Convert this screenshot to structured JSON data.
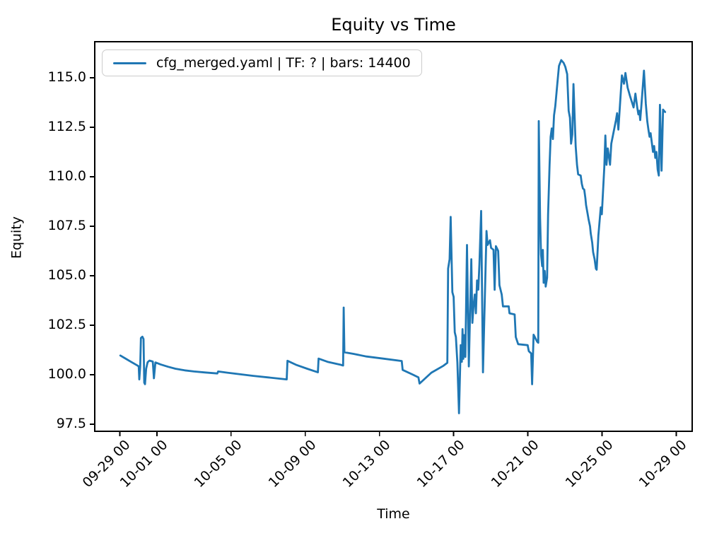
{
  "figure": {
    "title": "Equity vs Time",
    "xlabel": "Time",
    "ylabel": "Equity",
    "background_color": "#ffffff",
    "text_color": "#000000",
    "spine_color": "#000000"
  },
  "legend": {
    "label": "cfg_merged.yaml | TF: ? | bars: 14400",
    "line_color": "#1f77b4",
    "border_color": "#cccccc",
    "position": "upper left"
  },
  "chart_data": {
    "type": "line",
    "title": "Equity vs Time",
    "xlabel": "Time",
    "ylabel": "Equity",
    "grid": false,
    "legend_entries": [
      "cfg_merged.yaml | TF: ? | bars: 14400"
    ],
    "legend_position": "upper left",
    "line_color": "#1f77b4",
    "x_unit": "days_since_first_tick_09-29_00",
    "x_tick_labels": [
      "09-29 00",
      "10-01 00",
      "10-05 00",
      "10-09 00",
      "10-13 00",
      "10-17 00",
      "10-21 00",
      "10-25 00",
      "10-29 00"
    ],
    "x_tick_days": [
      0,
      2,
      6,
      10,
      14,
      18,
      22,
      26,
      30
    ],
    "y_tick_labels": [
      "97.5",
      "100.0",
      "102.5",
      "105.0",
      "107.5",
      "110.0",
      "112.5",
      "115.0"
    ],
    "y_ticks": [
      97.5,
      100.0,
      102.5,
      105.0,
      107.5,
      110.0,
      112.5,
      115.0
    ],
    "xlim_days": [
      -1.35,
      30.86
    ],
    "ylim": [
      97.14,
      116.82
    ],
    "series": [
      {
        "name": "cfg_merged.yaml | TF: ? | bars: 14400",
        "points_day_value": [
          [
            0.03,
            100.97
          ],
          [
            0.3,
            100.82
          ],
          [
            0.6,
            100.65
          ],
          [
            0.94,
            100.47
          ],
          [
            1.02,
            100.42
          ],
          [
            1.05,
            99.76
          ],
          [
            1.1,
            100.4
          ],
          [
            1.14,
            101.85
          ],
          [
            1.22,
            101.92
          ],
          [
            1.28,
            101.8
          ],
          [
            1.32,
            99.6
          ],
          [
            1.36,
            99.52
          ],
          [
            1.42,
            100.3
          ],
          [
            1.5,
            100.63
          ],
          [
            1.6,
            100.71
          ],
          [
            1.78,
            100.66
          ],
          [
            1.84,
            99.82
          ],
          [
            1.92,
            100.62
          ],
          [
            2.2,
            100.52
          ],
          [
            2.6,
            100.4
          ],
          [
            3.0,
            100.3
          ],
          [
            3.5,
            100.22
          ],
          [
            4.0,
            100.16
          ],
          [
            4.6,
            100.11
          ],
          [
            5.26,
            100.06
          ],
          [
            5.3,
            100.16
          ],
          [
            5.8,
            100.1
          ],
          [
            6.5,
            100.02
          ],
          [
            7.2,
            99.94
          ],
          [
            8.0,
            99.86
          ],
          [
            8.6,
            99.8
          ],
          [
            9.0,
            99.76
          ],
          [
            9.04,
            100.7
          ],
          [
            9.5,
            100.5
          ],
          [
            10.1,
            100.3
          ],
          [
            10.68,
            100.12
          ],
          [
            10.72,
            100.81
          ],
          [
            11.2,
            100.65
          ],
          [
            11.9,
            100.5
          ],
          [
            12.04,
            100.46
          ],
          [
            12.07,
            103.39
          ],
          [
            12.11,
            101.13
          ],
          [
            12.6,
            101.05
          ],
          [
            13.3,
            100.92
          ],
          [
            14.2,
            100.81
          ],
          [
            15.2,
            100.69
          ],
          [
            15.25,
            100.24
          ],
          [
            15.8,
            100.0
          ],
          [
            16.1,
            99.86
          ],
          [
            16.16,
            99.55
          ],
          [
            16.8,
            100.1
          ],
          [
            17.45,
            100.45
          ],
          [
            17.66,
            100.6
          ],
          [
            17.7,
            105.36
          ],
          [
            17.78,
            105.83
          ],
          [
            17.84,
            107.97
          ],
          [
            17.93,
            104.17
          ],
          [
            18.0,
            103.93
          ],
          [
            18.06,
            102.14
          ],
          [
            18.12,
            101.9
          ],
          [
            18.2,
            100.6
          ],
          [
            18.29,
            98.05
          ],
          [
            18.38,
            101.49
          ],
          [
            18.44,
            100.65
          ],
          [
            18.48,
            102.3
          ],
          [
            18.52,
            100.8
          ],
          [
            18.57,
            102.0
          ],
          [
            18.63,
            100.9
          ],
          [
            18.72,
            106.55
          ],
          [
            18.82,
            100.42
          ],
          [
            18.95,
            105.83
          ],
          [
            19.01,
            102.62
          ],
          [
            19.07,
            103.45
          ],
          [
            19.14,
            104.05
          ],
          [
            19.2,
            103.1
          ],
          [
            19.26,
            104.76
          ],
          [
            19.33,
            104.29
          ],
          [
            19.39,
            105.6
          ],
          [
            19.48,
            108.27
          ],
          [
            19.58,
            100.12
          ],
          [
            19.77,
            107.26
          ],
          [
            19.83,
            106.55
          ],
          [
            19.96,
            106.79
          ],
          [
            20.02,
            106.4
          ],
          [
            20.15,
            106.31
          ],
          [
            20.21,
            104.29
          ],
          [
            20.28,
            106.49
          ],
          [
            20.4,
            106.25
          ],
          [
            20.47,
            104.52
          ],
          [
            20.59,
            104.05
          ],
          [
            20.66,
            103.45
          ],
          [
            20.97,
            103.45
          ],
          [
            21.01,
            103.1
          ],
          [
            21.29,
            103.04
          ],
          [
            21.35,
            101.9
          ],
          [
            21.48,
            101.54
          ],
          [
            21.99,
            101.49
          ],
          [
            22.05,
            101.19
          ],
          [
            22.18,
            101.07
          ],
          [
            22.23,
            99.52
          ],
          [
            22.31,
            102.02
          ],
          [
            22.5,
            101.67
          ],
          [
            22.56,
            101.61
          ],
          [
            22.59,
            112.81
          ],
          [
            22.66,
            107.9
          ],
          [
            22.71,
            106.07
          ],
          [
            22.77,
            105.48
          ],
          [
            22.81,
            106.3
          ],
          [
            22.85,
            104.64
          ],
          [
            22.91,
            105.24
          ],
          [
            22.96,
            104.45
          ],
          [
            23.04,
            104.9
          ],
          [
            23.09,
            108.1
          ],
          [
            23.17,
            110.6
          ],
          [
            23.23,
            112.02
          ],
          [
            23.29,
            112.44
          ],
          [
            23.35,
            111.9
          ],
          [
            23.41,
            113.1
          ],
          [
            23.48,
            113.57
          ],
          [
            23.58,
            114.6
          ],
          [
            23.68,
            115.6
          ],
          [
            23.8,
            115.89
          ],
          [
            23.93,
            115.75
          ],
          [
            24.02,
            115.55
          ],
          [
            24.12,
            115.18
          ],
          [
            24.2,
            113.33
          ],
          [
            24.27,
            112.98
          ],
          [
            24.33,
            111.67
          ],
          [
            24.4,
            112.14
          ],
          [
            24.46,
            114.68
          ],
          [
            24.58,
            111.55
          ],
          [
            24.65,
            110.6
          ],
          [
            24.71,
            110.12
          ],
          [
            24.85,
            110.06
          ],
          [
            24.91,
            109.64
          ],
          [
            24.97,
            109.4
          ],
          [
            25.04,
            109.35
          ],
          [
            25.1,
            108.93
          ],
          [
            25.14,
            108.57
          ],
          [
            25.22,
            108.15
          ],
          [
            25.27,
            107.86
          ],
          [
            25.35,
            107.5
          ],
          [
            25.39,
            107.14
          ],
          [
            25.47,
            106.67
          ],
          [
            25.52,
            106.19
          ],
          [
            25.6,
            105.83
          ],
          [
            25.67,
            105.36
          ],
          [
            25.71,
            105.3
          ],
          [
            25.8,
            107.02
          ],
          [
            25.93,
            108.45
          ],
          [
            25.99,
            108.1
          ],
          [
            26.12,
            110.48
          ],
          [
            26.18,
            112.08
          ],
          [
            26.24,
            110.6
          ],
          [
            26.31,
            111.43
          ],
          [
            26.43,
            110.6
          ],
          [
            26.5,
            111.67
          ],
          [
            26.75,
            112.86
          ],
          [
            26.81,
            113.21
          ],
          [
            26.88,
            112.38
          ],
          [
            27.07,
            115.12
          ],
          [
            27.18,
            114.7
          ],
          [
            27.26,
            115.24
          ],
          [
            27.38,
            114.5
          ],
          [
            27.5,
            114.1
          ],
          [
            27.6,
            113.8
          ],
          [
            27.7,
            113.5
          ],
          [
            27.8,
            114.2
          ],
          [
            27.9,
            113.5
          ],
          [
            27.96,
            113.15
          ],
          [
            28.01,
            113.33
          ],
          [
            28.06,
            112.86
          ],
          [
            28.12,
            113.57
          ],
          [
            28.26,
            115.36
          ],
          [
            28.36,
            113.69
          ],
          [
            28.44,
            112.8
          ],
          [
            28.5,
            112.38
          ],
          [
            28.56,
            112.02
          ],
          [
            28.62,
            112.2
          ],
          [
            28.69,
            111.67
          ],
          [
            28.75,
            111.25
          ],
          [
            28.81,
            111.55
          ],
          [
            28.87,
            110.95
          ],
          [
            28.93,
            111.25
          ],
          [
            29.0,
            110.36
          ],
          [
            29.06,
            110.06
          ],
          [
            29.12,
            113.63
          ],
          [
            29.21,
            110.31
          ],
          [
            29.29,
            113.39
          ],
          [
            29.4,
            113.27
          ]
        ]
      }
    ]
  }
}
